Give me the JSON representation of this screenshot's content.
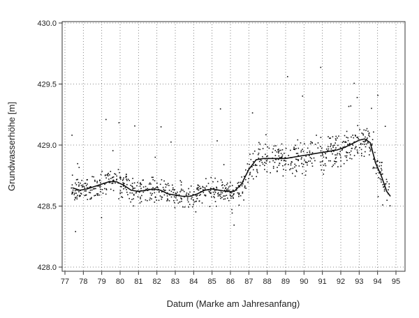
{
  "chart_data": {
    "type": "scatter",
    "title": "",
    "xlabel": "Datum  (Marke am Jahresanfang)",
    "ylabel": "Grundwasserhöhe [m]",
    "xlim": [
      77,
      95
    ],
    "ylim": [
      428.0,
      430.0
    ],
    "x_ticks": [
      "77",
      "78",
      "79",
      "80",
      "81",
      "82",
      "83",
      "84",
      "85",
      "86",
      "87",
      "88",
      "89",
      "90",
      "91",
      "92",
      "93",
      "94",
      "95"
    ],
    "y_ticks": [
      "428.0",
      "428.5",
      "429.0",
      "429.5",
      "430.0"
    ],
    "grid": true,
    "colors": {
      "points": "#111111",
      "line": "#111111",
      "grid": "#666666"
    },
    "series": [
      {
        "kind": "smoothed_line",
        "points": [
          [
            77.4,
            428.65
          ],
          [
            77.8,
            428.63
          ],
          [
            78.2,
            428.64
          ],
          [
            78.6,
            428.66
          ],
          [
            79.0,
            428.68
          ],
          [
            79.4,
            428.7
          ],
          [
            79.8,
            428.7
          ],
          [
            80.2,
            428.67
          ],
          [
            80.6,
            428.63
          ],
          [
            81.0,
            428.62
          ],
          [
            81.4,
            428.63
          ],
          [
            81.8,
            428.64
          ],
          [
            82.2,
            428.63
          ],
          [
            82.6,
            428.6
          ],
          [
            83.0,
            428.59
          ],
          [
            83.4,
            428.58
          ],
          [
            83.8,
            428.58
          ],
          [
            84.2,
            428.6
          ],
          [
            84.6,
            428.63
          ],
          [
            85.0,
            428.64
          ],
          [
            85.4,
            428.63
          ],
          [
            85.8,
            428.62
          ],
          [
            86.2,
            428.62
          ],
          [
            86.6,
            428.68
          ],
          [
            87.0,
            428.8
          ],
          [
            87.4,
            428.88
          ],
          [
            87.8,
            428.89
          ],
          [
            88.2,
            428.89
          ],
          [
            88.6,
            428.89
          ],
          [
            89.0,
            428.89
          ],
          [
            89.4,
            428.9
          ],
          [
            89.8,
            428.91
          ],
          [
            90.2,
            428.92
          ],
          [
            90.6,
            428.93
          ],
          [
            91.0,
            428.94
          ],
          [
            91.4,
            428.95
          ],
          [
            91.8,
            428.96
          ],
          [
            92.2,
            428.98
          ],
          [
            92.6,
            429.01
          ],
          [
            93.0,
            429.04
          ],
          [
            93.3,
            429.05
          ],
          [
            93.6,
            429.02
          ],
          [
            93.9,
            428.85
          ],
          [
            94.2,
            428.75
          ],
          [
            94.5,
            428.62
          ],
          [
            94.7,
            428.58
          ]
        ]
      }
    ]
  }
}
